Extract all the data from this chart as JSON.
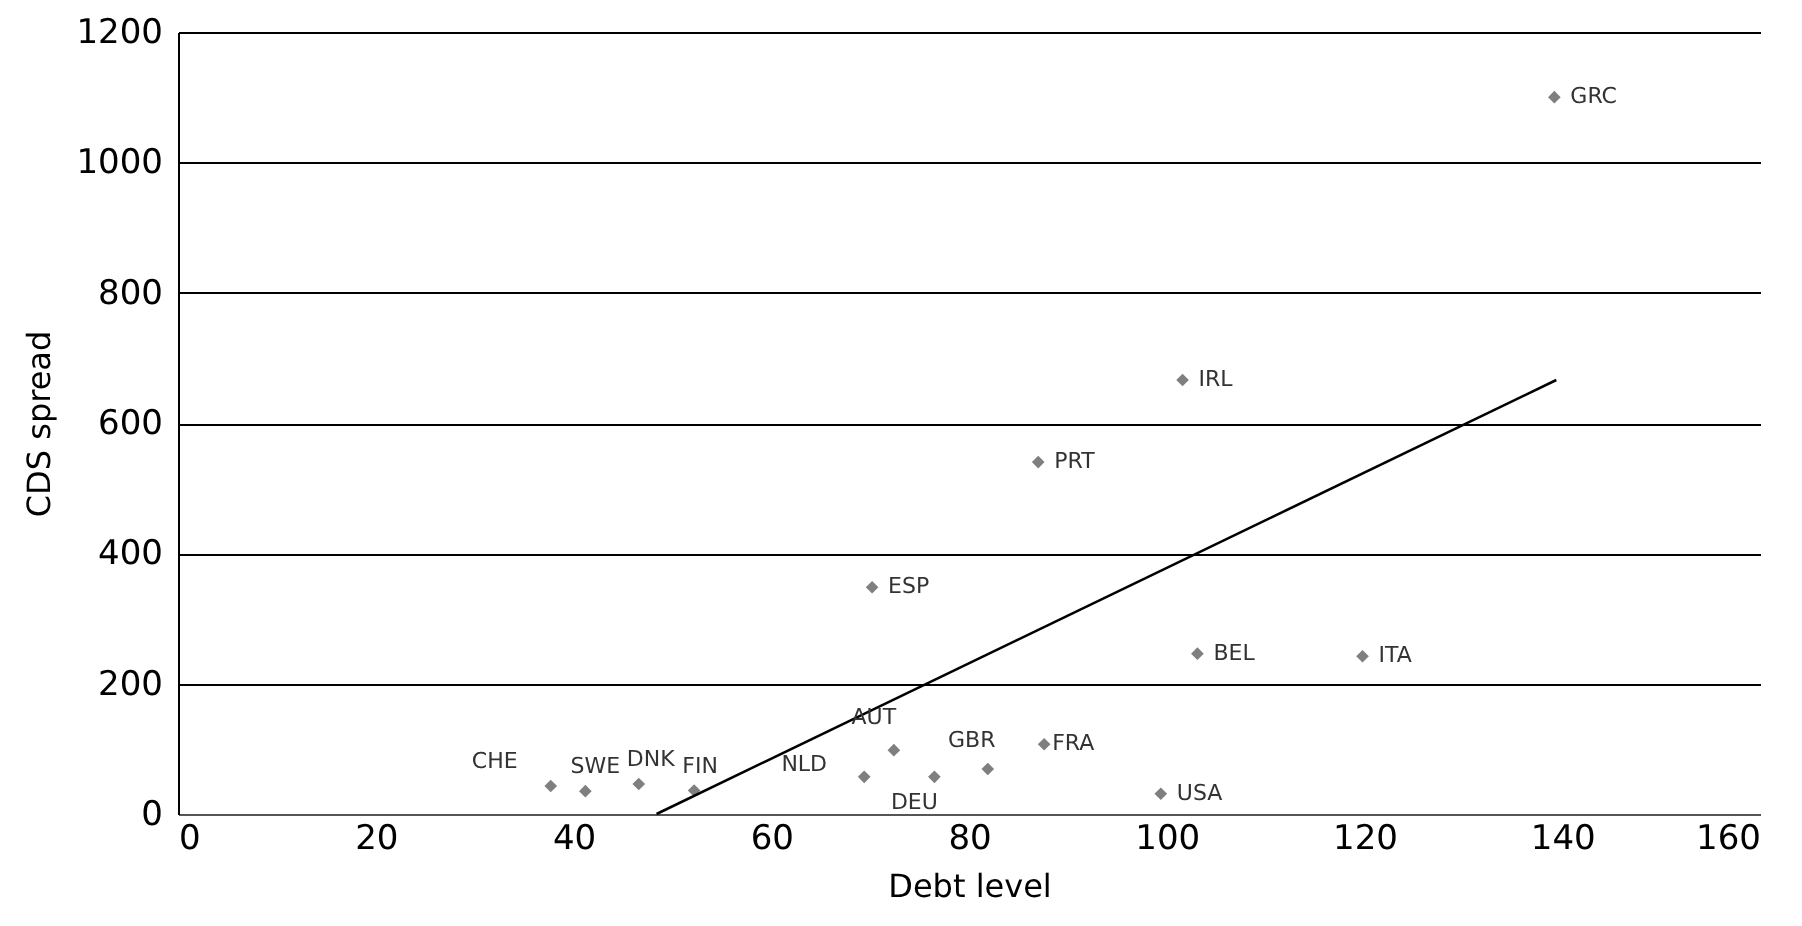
{
  "chart_data": {
    "type": "scatter",
    "xlabel": "Debt level",
    "ylabel": "CDS spread",
    "xlim": [
      0,
      160
    ],
    "ylim": [
      0,
      1200
    ],
    "xticks": [
      0,
      20,
      40,
      60,
      80,
      100,
      120,
      140,
      160
    ],
    "yticks": [
      0,
      200,
      400,
      600,
      800,
      1000,
      1200
    ],
    "grid": "y",
    "series": [
      {
        "marker": "diamond",
        "color": "#7f7f7f",
        "x": [
          37.7,
          41.2,
          46.6,
          52.2,
          69.4,
          72.4,
          76.5,
          81.9,
          87.6,
          99.4,
          101.6,
          87.0,
          70.2,
          103.1,
          119.8,
          139.2
        ],
        "values": [
          43,
          35,
          46,
          36,
          57,
          98,
          57,
          69,
          107,
          31,
          666,
          540,
          348,
          246,
          242,
          1100
        ]
      },
      {
        "type": "line",
        "color": "#000000",
        "x": [
          48.4,
          139.4
        ],
        "values": [
          0,
          666
        ]
      }
    ],
    "annotations": [
      {
        "text": "CHE",
        "x": 37.7,
        "y": 43
      },
      {
        "text": "SWE",
        "x": 41.2,
        "y": 35
      },
      {
        "text": "DNK",
        "x": 46.6,
        "y": 46
      },
      {
        "text": "FIN",
        "x": 52.2,
        "y": 36
      },
      {
        "text": "NLD",
        "x": 69.4,
        "y": 57
      },
      {
        "text": "AUT",
        "x": 72.4,
        "y": 98
      },
      {
        "text": "DEU",
        "x": 76.5,
        "y": 57
      },
      {
        "text": "GBR",
        "x": 81.9,
        "y": 69
      },
      {
        "text": "FRA",
        "x": 87.6,
        "y": 107
      },
      {
        "text": "USA",
        "x": 99.4,
        "y": 31
      },
      {
        "text": "IRL",
        "x": 101.6,
        "y": 666
      },
      {
        "text": "PRT",
        "x": 87.0,
        "y": 540
      },
      {
        "text": "ESP",
        "x": 70.2,
        "y": 348
      },
      {
        "text": "BEL",
        "x": 103.1,
        "y": 246
      },
      {
        "text": "ITA",
        "x": 119.8,
        "y": 242
      },
      {
        "text": "GRC",
        "x": 139.2,
        "y": 1100
      }
    ]
  }
}
